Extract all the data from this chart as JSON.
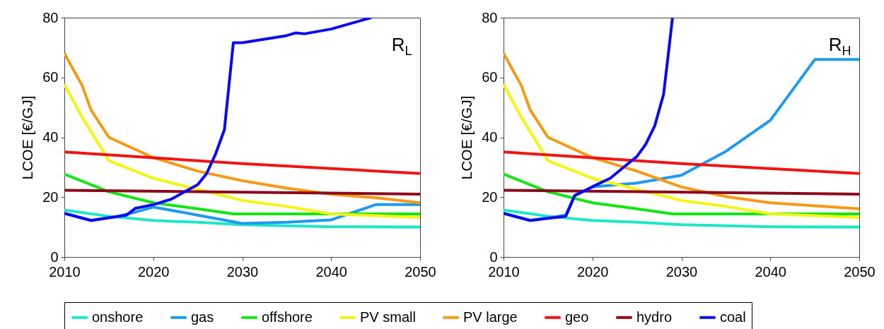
{
  "chart_data": [
    {
      "type": "line",
      "ylabel": "LCOE [€/GJ]",
      "xlim": [
        2010,
        2050
      ],
      "ylim": [
        0,
        80
      ],
      "xticks": [
        2010,
        2020,
        2030,
        2040,
        2050
      ],
      "yticks": [
        0,
        20,
        40,
        60,
        80
      ],
      "grid": false,
      "legend": "bottom",
      "marker": "none",
      "line_style": "solid",
      "annotations": [
        "R$_{L}$"
      ],
      "series": [
        {
          "name": "onshore",
          "color": "#1ee6c8",
          "x": [
            2010,
            2015,
            2020,
            2025,
            2030,
            2040,
            2050
          ],
          "values": [
            15.7,
            13.6,
            12.2,
            11.6,
            10.8,
            10.1,
            10
          ]
        },
        {
          "name": "gas",
          "color": "#1e9bf0",
          "x": [
            2010,
            2013,
            2016,
            2018,
            2020,
            2025,
            2030,
            2035,
            2040,
            2045,
            2050
          ],
          "values": [
            14.6,
            12.2,
            13.6,
            15,
            16.7,
            14,
            11.2,
            11.6,
            12.4,
            17.5,
            17.5
          ]
        },
        {
          "name": "offshore",
          "color": "#14e614",
          "x": [
            2010,
            2015,
            2020,
            2025,
            2029,
            2040,
            2050
          ],
          "values": [
            27.7,
            21.8,
            18.1,
            16.1,
            14.4,
            14.4,
            14.4
          ]
        },
        {
          "name": "PV small",
          "color": "#f5f514",
          "x": [
            2010,
            2012,
            2015,
            2020,
            2025,
            2030,
            2035,
            2040,
            2050
          ],
          "values": [
            57.7,
            46.7,
            32.2,
            26.3,
            22.6,
            18.9,
            16.9,
            14.4,
            13.2
          ]
        },
        {
          "name": "PV large",
          "color": "#f59a14",
          "x": [
            2010,
            2012,
            2013,
            2015,
            2020,
            2025,
            2030,
            2035,
            2040,
            2045,
            2050
          ],
          "values": [
            68.1,
            57.3,
            49.1,
            40,
            33.2,
            28.7,
            25.5,
            23,
            21,
            19.8,
            18.1
          ]
        },
        {
          "name": "geo",
          "color": "#f01414",
          "x": [
            2010,
            2030,
            2050
          ],
          "values": [
            35.1,
            31.2,
            27.9
          ]
        },
        {
          "name": "hydro",
          "color": "#8c0a1e",
          "x": [
            2010,
            2050
          ],
          "values": [
            22.3,
            21
          ]
        },
        {
          "name": "coal",
          "color": "#0a0af0",
          "x": [
            2010,
            2013,
            2017,
            2018,
            2020,
            2022,
            2025,
            2026,
            2027,
            2028,
            2029,
            2030,
            2035,
            2036,
            2037,
            2040,
            2044.5
          ],
          "values": [
            14.6,
            12.2,
            14,
            16.3,
            17.5,
            19.3,
            24.2,
            27.9,
            34.4,
            42.6,
            71.6,
            71.6,
            74,
            74.9,
            74.6,
            76.2,
            80
          ]
        }
      ]
    },
    {
      "type": "line",
      "ylabel": "LCOE [€/GJ]",
      "xlim": [
        2010,
        2050
      ],
      "ylim": [
        0,
        80
      ],
      "xticks": [
        2010,
        2020,
        2030,
        2040,
        2050
      ],
      "yticks": [
        0,
        20,
        40,
        60,
        80
      ],
      "grid": false,
      "legend": "bottom",
      "marker": "none",
      "line_style": "solid",
      "annotations": [
        "R$_{H}$"
      ],
      "series": [
        {
          "name": "onshore",
          "color": "#1ee6c8",
          "x": [
            2010,
            2015,
            2020,
            2025,
            2030,
            2040,
            2050
          ],
          "values": [
            15.7,
            13.6,
            12.2,
            11.6,
            10.8,
            10.1,
            10
          ]
        },
        {
          "name": "gas",
          "color": "#1e9bf0",
          "x": [
            2010,
            2013,
            2017,
            2018,
            2020,
            2025,
            2030,
            2035,
            2040,
            2045,
            2050
          ],
          "values": [
            14.6,
            12.2,
            14,
            20.6,
            23.4,
            24.7,
            27.3,
            35.3,
            45.7,
            66,
            66
          ]
        },
        {
          "name": "offshore",
          "color": "#14e614",
          "x": [
            2010,
            2015,
            2020,
            2025,
            2029,
            2040,
            2050
          ],
          "values": [
            27.7,
            21.8,
            18.1,
            16.1,
            14.4,
            14.4,
            14.4
          ]
        },
        {
          "name": "PV small",
          "color": "#f5f514",
          "x": [
            2010,
            2012,
            2015,
            2020,
            2025,
            2030,
            2035,
            2040,
            2050
          ],
          "values": [
            57.7,
            46.7,
            32.2,
            26.3,
            22.6,
            18.9,
            16.9,
            14.4,
            13.2
          ]
        },
        {
          "name": "PV large",
          "color": "#f59a14",
          "x": [
            2010,
            2012,
            2013,
            2015,
            2020,
            2025,
            2030,
            2035,
            2040,
            2050
          ],
          "values": [
            68.1,
            57.3,
            49.1,
            40,
            33.2,
            28.7,
            23.4,
            20.2,
            18.1,
            16.1
          ]
        },
        {
          "name": "geo",
          "color": "#f01414",
          "x": [
            2010,
            2030,
            2050
          ],
          "values": [
            35.1,
            31.2,
            27.9
          ]
        },
        {
          "name": "hydro",
          "color": "#8c0a1e",
          "x": [
            2010,
            2050
          ],
          "values": [
            22.3,
            21
          ]
        },
        {
          "name": "coal",
          "color": "#0a0af0",
          "x": [
            2010,
            2013,
            2017,
            2018,
            2020,
            2022,
            2024,
            2025,
            2026,
            2027,
            2028,
            2028.5,
            2029
          ],
          "values": [
            14.6,
            12.2,
            13.6,
            20.5,
            23.5,
            26.3,
            31.2,
            33.6,
            37.7,
            43.8,
            54.4,
            67.1,
            80
          ]
        }
      ]
    }
  ]
}
